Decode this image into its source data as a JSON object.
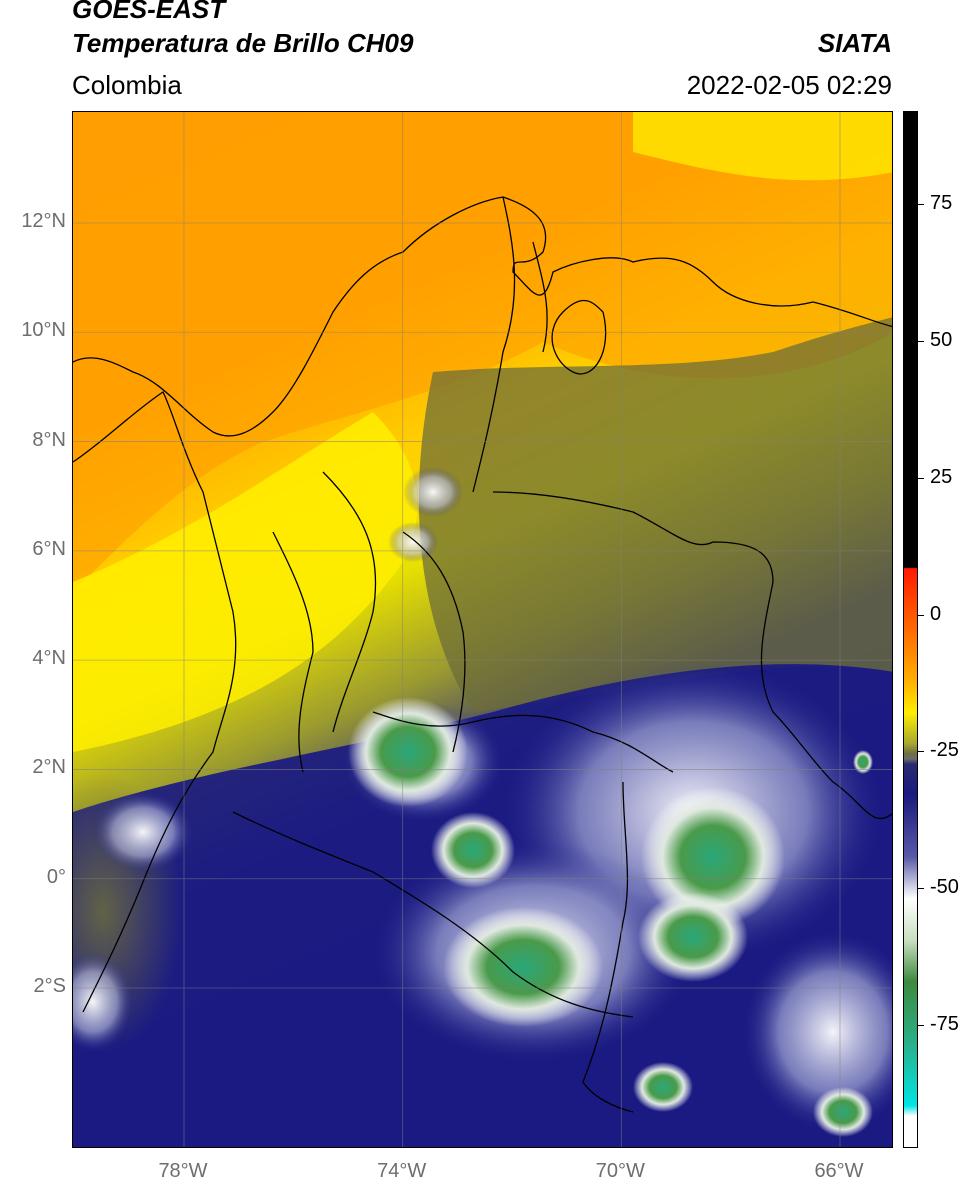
{
  "header": {
    "satellite": "GOES-EAST",
    "product": "Temperatura de Brillo CH09",
    "organization": "SIATA",
    "region": "Colombia",
    "datetime": "2022-02-05 02:29"
  },
  "map": {
    "lon_range": [
      -80,
      -65
    ],
    "lat_range": [
      -5,
      14
    ],
    "lat_ticks": [
      {
        "label": "12°N",
        "value": 12
      },
      {
        "label": "10°N",
        "value": 10
      },
      {
        "label": "8°N",
        "value": 8
      },
      {
        "label": "6°N",
        "value": 6
      },
      {
        "label": "4°N",
        "value": 4
      },
      {
        "label": "2°N",
        "value": 2
      },
      {
        "label": "0°",
        "value": 0
      },
      {
        "label": "2°S",
        "value": -2
      }
    ],
    "lon_ticks": [
      {
        "label": "78°W",
        "value": -78
      },
      {
        "label": "74°W",
        "value": -74
      },
      {
        "label": "70°W",
        "value": -70
      },
      {
        "label": "66°W",
        "value": -66
      }
    ],
    "grid": true
  },
  "colorbar": {
    "range": [
      -100,
      90
    ],
    "ticks": [
      {
        "label": "75",
        "value": 75
      },
      {
        "label": "50",
        "value": 50
      },
      {
        "label": "25",
        "value": 25
      },
      {
        "label": "0",
        "value": 0
      },
      {
        "label": "-25",
        "value": -25
      },
      {
        "label": "-50",
        "value": -50
      },
      {
        "label": "-75",
        "value": -75
      }
    ],
    "colors": {
      "black": "#000000",
      "red": "#ff1a00",
      "orange": "#ff9900",
      "yellow": "#ffee00",
      "olive": "#7a7a30",
      "navy": "#1a1a80",
      "white": "#ffffff",
      "green": "#3d8a3d",
      "teal": "#2ab08a",
      "cyan": "#00e5e5"
    }
  }
}
